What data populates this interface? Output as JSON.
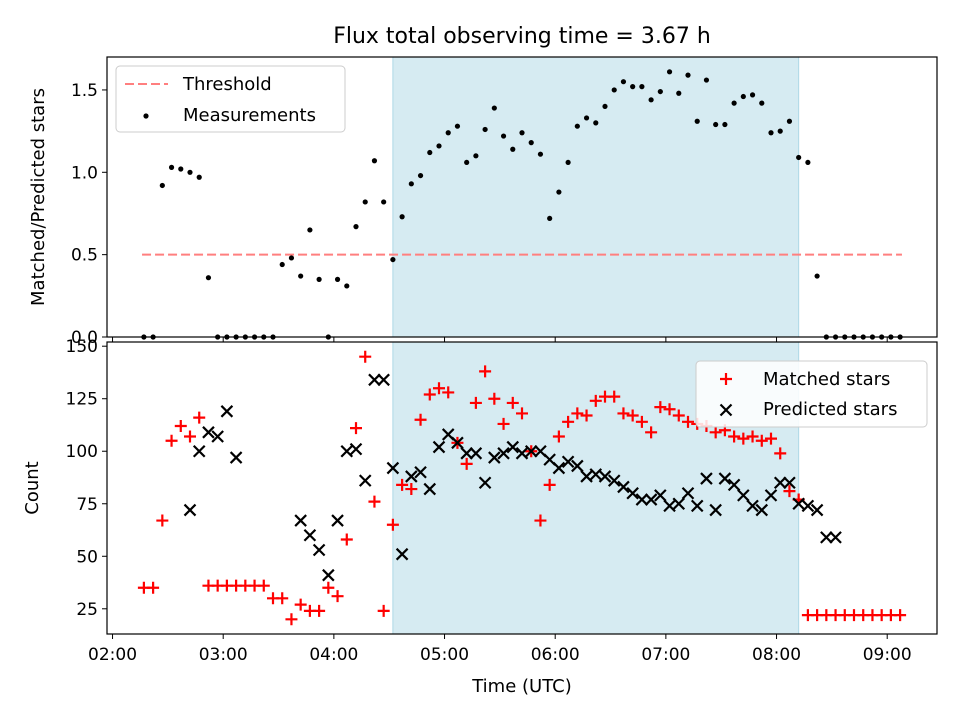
{
  "chart_data": [
    {
      "type": "scatter",
      "title": "Flux total observing time = 3.67 h",
      "ylabel": "Matched/Predicted stars",
      "xlabel": "",
      "xlim": [
        "01:57",
        "09:27"
      ],
      "ylim": [
        0,
        1.7
      ],
      "yticks": [
        "0.0",
        "0.5",
        "1.0",
        "1.5"
      ],
      "shaded_interval": [
        "04:32",
        "08:12"
      ],
      "shade_color": "#add8e6",
      "legend_position": "top-left",
      "series": [
        {
          "name": "Threshold",
          "style": "dashed-line",
          "color": "#ff7f7f",
          "x": [
            "02:16",
            "09:08"
          ],
          "y": [
            0.5,
            0.5
          ]
        },
        {
          "name": "Measurements",
          "style": "dot",
          "color": "#000000",
          "x": [
            "02:17",
            "02:22",
            "02:27",
            "02:32",
            "02:37",
            "02:42",
            "02:47",
            "02:52",
            "02:57",
            "03:02",
            "03:07",
            "03:12",
            "03:17",
            "03:22",
            "03:27",
            "03:32",
            "03:37",
            "03:42",
            "03:47",
            "03:52",
            "03:57",
            "04:02",
            "04:07",
            "04:12",
            "04:17",
            "04:22",
            "04:27",
            "04:32",
            "04:37",
            "04:42",
            "04:47",
            "04:52",
            "04:57",
            "05:02",
            "05:07",
            "05:12",
            "05:17",
            "05:22",
            "05:27",
            "05:32",
            "05:37",
            "05:42",
            "05:47",
            "05:52",
            "05:57",
            "06:02",
            "06:07",
            "06:12",
            "06:17",
            "06:22",
            "06:27",
            "06:32",
            "06:37",
            "06:42",
            "06:47",
            "06:52",
            "06:57",
            "07:02",
            "07:07",
            "07:12",
            "07:17",
            "07:22",
            "07:27",
            "07:32",
            "07:37",
            "07:42",
            "07:47",
            "07:52",
            "07:57",
            "08:02",
            "08:07",
            "08:12",
            "08:17",
            "08:22",
            "08:27",
            "08:32",
            "08:37",
            "08:42",
            "08:47",
            "08:52",
            "08:57",
            "09:02",
            "09:07"
          ],
          "y": [
            0,
            0,
            0.92,
            1.03,
            1.02,
            1.0,
            0.97,
            0.36,
            0,
            0,
            0,
            0,
            0,
            0,
            0,
            0.44,
            0.48,
            0.37,
            0.65,
            0.35,
            0,
            0.35,
            0.31,
            0.67,
            0.82,
            1.07,
            0.82,
            0.47,
            0.73,
            0.93,
            0.98,
            1.12,
            1.16,
            1.24,
            1.28,
            1.06,
            1.1,
            1.26,
            1.39,
            1.22,
            1.14,
            1.24,
            1.18,
            1.11,
            0.72,
            0.88,
            1.06,
            1.28,
            1.33,
            1.3,
            1.4,
            1.5,
            1.55,
            1.52,
            1.52,
            1.44,
            1.49,
            1.61,
            1.48,
            1.59,
            1.31,
            1.56,
            1.29,
            1.29,
            1.42,
            1.46,
            1.47,
            1.42,
            1.24,
            1.25,
            1.31,
            1.09,
            1.06,
            0.37,
            0,
            0,
            0,
            0,
            0,
            0,
            0,
            0,
            0
          ]
        }
      ]
    },
    {
      "type": "scatter",
      "title": "",
      "xlabel": "Time (UTC)",
      "ylabel": "Count",
      "xlim": [
        "01:57",
        "09:27"
      ],
      "ylim": [
        13,
        152
      ],
      "xticks": [
        "02:00",
        "03:00",
        "04:00",
        "05:00",
        "06:00",
        "07:00",
        "08:00",
        "09:00"
      ],
      "yticks": [
        "25",
        "50",
        "75",
        "100",
        "125",
        "150"
      ],
      "shaded_interval": [
        "04:32",
        "08:12"
      ],
      "shade_color": "#add8e6",
      "legend_position": "top-right",
      "series": [
        {
          "name": "Matched stars",
          "marker": "plus",
          "color": "#ff0000",
          "x": [
            "02:17",
            "02:22",
            "02:27",
            "02:32",
            "02:37",
            "02:42",
            "02:47",
            "02:52",
            "02:57",
            "03:02",
            "03:07",
            "03:12",
            "03:17",
            "03:22",
            "03:27",
            "03:32",
            "03:37",
            "03:42",
            "03:47",
            "03:52",
            "03:57",
            "04:02",
            "04:07",
            "04:12",
            "04:17",
            "04:22",
            "04:27",
            "04:32",
            "04:37",
            "04:42",
            "04:47",
            "04:52",
            "04:57",
            "05:02",
            "05:07",
            "05:12",
            "05:17",
            "05:22",
            "05:27",
            "05:32",
            "05:37",
            "05:42",
            "05:47",
            "05:52",
            "05:57",
            "06:02",
            "06:07",
            "06:12",
            "06:17",
            "06:22",
            "06:27",
            "06:32",
            "06:37",
            "06:42",
            "06:47",
            "06:52",
            "06:57",
            "07:02",
            "07:07",
            "07:12",
            "07:17",
            "07:22",
            "07:27",
            "07:32",
            "07:37",
            "07:42",
            "07:47",
            "07:52",
            "07:57",
            "08:02",
            "08:07",
            "08:12",
            "08:17",
            "08:22",
            "08:27",
            "08:32",
            "08:37",
            "08:42",
            "08:47",
            "08:52",
            "08:57",
            "09:02",
            "09:07"
          ],
          "y": [
            35,
            35,
            67,
            105,
            112,
            107,
            116,
            36,
            36,
            36,
            36,
            36,
            36,
            36,
            30,
            30,
            20,
            27,
            24,
            24,
            35,
            31,
            58,
            111,
            145,
            76,
            24,
            65,
            84,
            82,
            115,
            127,
            130,
            128,
            104,
            94,
            123,
            138,
            125,
            113,
            123,
            118,
            100,
            67,
            84,
            107,
            114,
            118,
            117,
            124,
            126,
            126,
            118,
            117,
            114,
            109,
            121,
            120,
            117,
            114,
            113,
            112,
            109,
            110,
            107,
            106,
            107,
            105,
            106,
            99,
            81,
            77,
            22,
            22,
            22,
            22,
            22,
            22,
            22,
            22,
            22,
            22,
            22
          ]
        },
        {
          "name": "Predicted stars",
          "marker": "x",
          "color": "#000000",
          "x": [
            "02:42",
            "02:47",
            "02:52",
            "02:57",
            "03:02",
            "03:07",
            "03:42",
            "03:47",
            "03:52",
            "03:57",
            "04:02",
            "04:07",
            "04:12",
            "04:17",
            "04:22",
            "04:27",
            "04:32",
            "04:37",
            "04:42",
            "04:47",
            "04:52",
            "04:57",
            "05:02",
            "05:07",
            "05:12",
            "05:17",
            "05:22",
            "05:27",
            "05:32",
            "05:37",
            "05:42",
            "05:47",
            "05:52",
            "05:57",
            "06:02",
            "06:07",
            "06:12",
            "06:17",
            "06:22",
            "06:27",
            "06:32",
            "06:37",
            "06:42",
            "06:47",
            "06:52",
            "06:57",
            "07:02",
            "07:07",
            "07:12",
            "07:17",
            "07:22",
            "07:27",
            "07:32",
            "07:37",
            "07:42",
            "07:47",
            "07:52",
            "07:57",
            "08:02",
            "08:07",
            "08:12",
            "08:17",
            "08:22",
            "08:27",
            "08:32"
          ],
          "y": [
            72,
            100,
            109,
            107,
            119,
            97,
            67,
            60,
            53,
            41,
            67,
            100,
            101,
            86,
            134,
            134,
            92,
            51,
            88,
            90,
            82,
            102,
            108,
            104,
            99,
            99,
            85,
            97,
            99,
            102,
            99,
            100,
            100,
            96,
            92,
            95,
            93,
            88,
            89,
            88,
            86,
            83,
            80,
            77,
            77,
            79,
            74,
            75,
            80,
            74,
            87,
            72,
            87,
            84,
            79,
            74,
            72,
            79,
            85,
            85,
            75,
            74,
            72,
            59,
            59
          ]
        }
      ]
    }
  ]
}
